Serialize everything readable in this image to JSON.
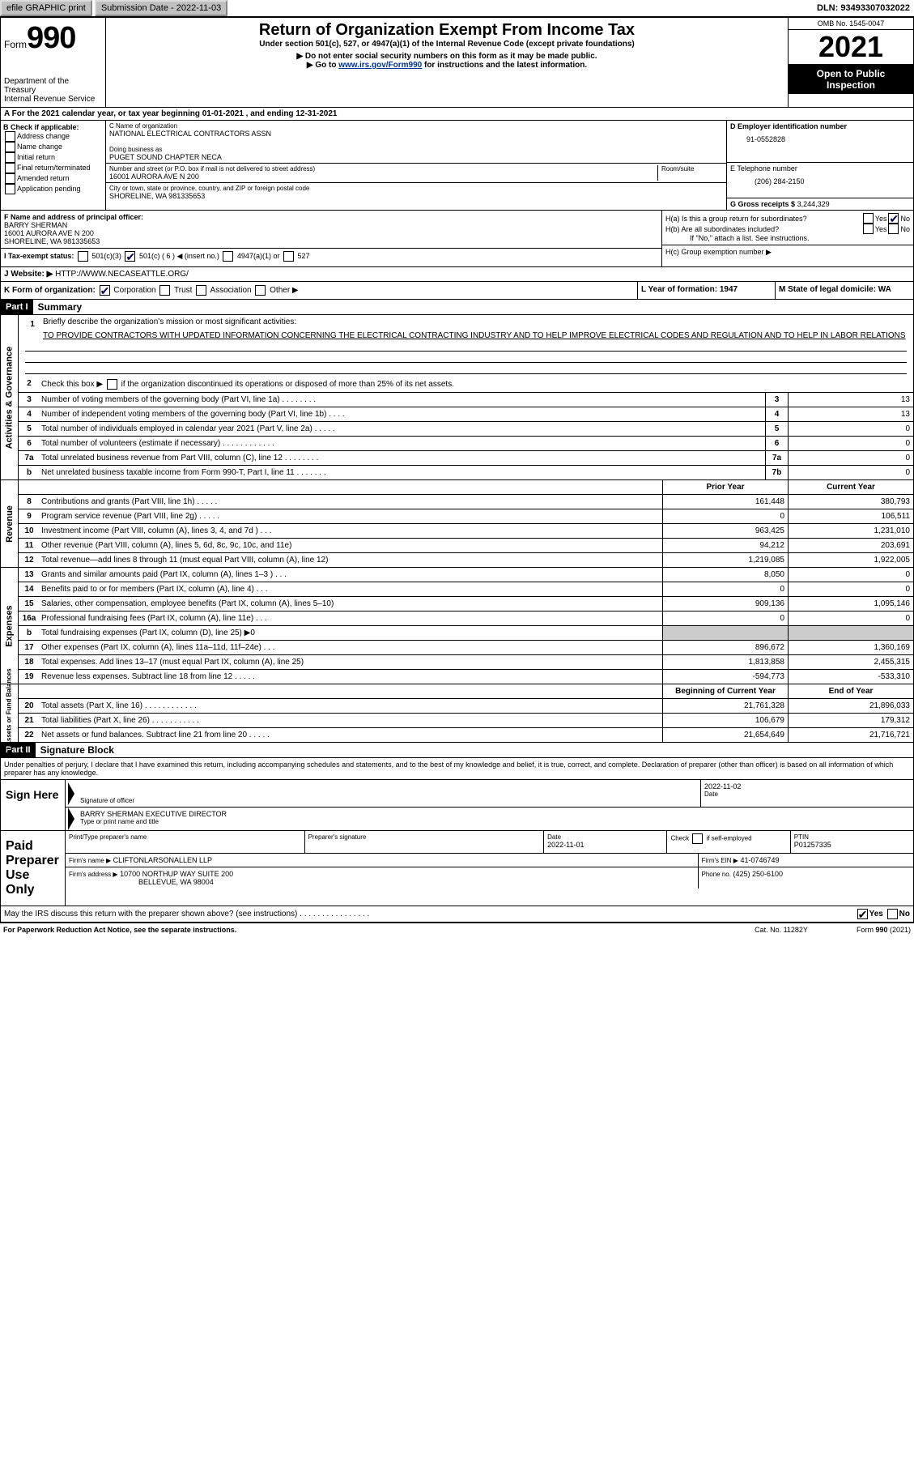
{
  "topbar": {
    "efile": "efile GRAPHIC print",
    "submission_label": "Submission Date - 2022-11-03",
    "dln_label": "DLN: 93493307032022"
  },
  "header": {
    "form_word": "Form",
    "form_num": "990",
    "dept": "Department of the Treasury",
    "dept2": "Internal Revenue Service",
    "title": "Return of Organization Exempt From Income Tax",
    "sub1": "Under section 501(c), 527, or 4947(a)(1) of the Internal Revenue Code (except private foundations)",
    "sub2": "▶ Do not enter social security numbers on this form as it may be made public.",
    "sub3a": "▶ Go to ",
    "sub3link": "www.irs.gov/Form990",
    "sub3b": " for instructions and the latest information.",
    "omb": "OMB No. 1545-0047",
    "year": "2021",
    "open": "Open to Public Inspection"
  },
  "A": {
    "text": "A For the 2021 calendar year, or tax year beginning 01-01-2021    , and ending 12-31-2021"
  },
  "B": {
    "label": "B Check if applicable:",
    "items": [
      "Address change",
      "Name change",
      "Initial return",
      "Final return/terminated",
      "Amended return",
      "Application pending"
    ]
  },
  "C": {
    "name_lbl": "C Name of organization",
    "name": "NATIONAL ELECTRICAL CONTRACTORS ASSN",
    "dba_lbl": "Doing business as",
    "dba": "PUGET SOUND CHAPTER NECA",
    "street_lbl": "Number and street (or P.O. box if mail is not delivered to street address)",
    "street": "16001 AURORA AVE N 200",
    "room_lbl": "Room/suite",
    "city_lbl": "City or town, state or province, country, and ZIP or foreign postal code",
    "city": "SHORELINE, WA  981335653"
  },
  "D": {
    "ein_lbl": "D Employer identification number",
    "ein": "91-0552828",
    "tel_lbl": "E Telephone number",
    "tel": "(206) 284-2150",
    "gross_lbl": "G Gross receipts $",
    "gross": "3,244,329"
  },
  "F": {
    "lbl": "F  Name and address of principal officer:",
    "name": "BARRY SHERMAN",
    "addr1": "16001 AURORA AVE N 200",
    "addr2": "SHORELINE, WA  981335653"
  },
  "H": {
    "a": "H(a)  Is this a group return for subordinates?",
    "b": "H(b)  Are all subordinates included?",
    "note": "If \"No,\" attach a list. See instructions.",
    "c": "H(c)  Group exemption number ▶",
    "yes": "Yes",
    "no": "No"
  },
  "I": {
    "lbl": "I    Tax-exempt status:",
    "o1": "501(c)(3)",
    "o2": "501(c) ( 6 ) ◀ (insert no.)",
    "o3": "4947(a)(1) or",
    "o4": "527"
  },
  "J": {
    "lbl": "J   Website: ▶ ",
    "val": "HTTP://WWW.NECASEATTLE.ORG/"
  },
  "K": {
    "lbl": "K Form of organization:",
    "o1": "Corporation",
    "o2": "Trust",
    "o3": "Association",
    "o4": "Other ▶",
    "L": "L Year of formation: 1947",
    "M": "M State of legal domicile: WA"
  },
  "part1": {
    "bar": "Part I",
    "title": "Summary",
    "l1a": "Briefly describe the organization's mission or most significant activities:",
    "l1b": "TO PROVIDE CONTRACTORS WITH UPDATED INFORMATION CONCERNING THE ELECTRICAL CONTRACTING INDUSTRY AND TO HELP IMPROVE ELECTRICAL CODES AND REGULATION AND TO HELP IN LABOR RELATIONS",
    "l2": "Check this box ▶        if the organization discontinued its operations or disposed of more than 25% of its net assets.",
    "rows3_7": [
      {
        "n": "3",
        "d": "Number of voting members of the governing body (Part VI, line 1a)   .    .    .    .    .    .    .    .",
        "b": "3",
        "v": "13"
      },
      {
        "n": "4",
        "d": "Number of independent voting members of the governing body (Part VI, line 1b)   .    .    .    .",
        "b": "4",
        "v": "13"
      },
      {
        "n": "5",
        "d": "Total number of individuals employed in calendar year 2021 (Part V, line 2a)   .    .    .    .    .",
        "b": "5",
        "v": "0"
      },
      {
        "n": "6",
        "d": "Total number of volunteers (estimate if necessary)    .    .    .    .    .    .    .    .    .    .    .    .",
        "b": "6",
        "v": "0"
      },
      {
        "n": "7a",
        "d": "Total unrelated business revenue from Part VIII, column (C), line 12   .    .    .    .    .    .    .    .",
        "b": "7a",
        "v": "0"
      },
      {
        "n": "b",
        "d": "Net unrelated business taxable income from Form 990-T, Part I, line 11   .    .    .    .    .    .    .",
        "b": "7b",
        "v": "0"
      }
    ],
    "head_prior": "Prior Year",
    "head_curr": "Current Year",
    "rev_rows": [
      {
        "n": "8",
        "d": "Contributions and grants (Part VIII, line 1h)   .    .    .    .    .",
        "p": "161,448",
        "c": "380,793"
      },
      {
        "n": "9",
        "d": "Program service revenue (Part VIII, line 2g)   .    .    .    .    .",
        "p": "0",
        "c": "106,511"
      },
      {
        "n": "10",
        "d": "Investment income (Part VIII, column (A), lines 3, 4, and 7d )    .    .    .",
        "p": "963,425",
        "c": "1,231,010"
      },
      {
        "n": "11",
        "d": "Other revenue (Part VIII, column (A), lines 5, 6d, 8c, 9c, 10c, and 11e)",
        "p": "94,212",
        "c": "203,691"
      },
      {
        "n": "12",
        "d": "Total revenue—add lines 8 through 11 (must equal Part VIII, column (A), line 12)",
        "p": "1,219,085",
        "c": "1,922,005"
      }
    ],
    "exp_rows": [
      {
        "n": "13",
        "d": "Grants and similar amounts paid (Part IX, column (A), lines 1–3 )   .    .    .",
        "p": "8,050",
        "c": "0"
      },
      {
        "n": "14",
        "d": "Benefits paid to or for members (Part IX, column (A), line 4)   .    .    .",
        "p": "0",
        "c": "0"
      },
      {
        "n": "15",
        "d": "Salaries, other compensation, employee benefits (Part IX, column (A), lines 5–10)",
        "p": "909,136",
        "c": "1,095,146"
      },
      {
        "n": "16a",
        "d": "Professional fundraising fees (Part IX, column (A), line 11e)   .    .    .",
        "p": "0",
        "c": "0"
      },
      {
        "n": "b",
        "d": "Total fundraising expenses (Part IX, column (D), line 25) ▶0",
        "p": "grey",
        "c": "grey"
      },
      {
        "n": "17",
        "d": "Other expenses (Part IX, column (A), lines 11a–11d, 11f–24e)    .    .    .",
        "p": "896,672",
        "c": "1,360,169"
      },
      {
        "n": "18",
        "d": "Total expenses. Add lines 13–17 (must equal Part IX, column (A), line 25)",
        "p": "1,813,858",
        "c": "2,455,315"
      },
      {
        "n": "19",
        "d": "Revenue less expenses. Subtract line 18 from line 12   .    .    .    .    .",
        "p": "-594,773",
        "c": "-533,310"
      }
    ],
    "head_beg": "Beginning of Current Year",
    "head_end": "End of Year",
    "na_rows": [
      {
        "n": "20",
        "d": "Total assets (Part X, line 16)   .    .    .    .    .    .    .    .    .    .    .    .",
        "p": "21,761,328",
        "c": "21,896,033"
      },
      {
        "n": "21",
        "d": "Total liabilities (Part X, line 26)   .    .    .    .    .    .    .    .    .    .    .",
        "p": "106,679",
        "c": "179,312"
      },
      {
        "n": "22",
        "d": "Net assets or fund balances. Subtract line 21 from line 20   .    .    .    .    .",
        "p": "21,654,649",
        "c": "21,716,721"
      }
    ]
  },
  "vlabels": {
    "gov": "Activities & Governance",
    "rev": "Revenue",
    "exp": "Expenses",
    "na": "Net Assets or Fund Balances"
  },
  "part2": {
    "bar": "Part II",
    "title": "Signature Block",
    "decl": "Under penalties of perjury, I declare that I have examined this return, including accompanying schedules and statements, and to the best of my knowledge and belief, it is true, correct, and complete. Declaration of preparer (other than officer) is based on all information of which preparer has any knowledge.",
    "sign_here": "Sign Here",
    "sig_of_officer": "Signature of officer",
    "date": "Date",
    "sig_date": "2022-11-02",
    "printed": "BARRY SHERMAN  EXECUTIVE DIRECTOR",
    "printed_lbl": "Type or print name and title",
    "paid": "Paid Preparer Use Only",
    "pp_name_lbl": "Print/Type preparer's name",
    "pp_sig_lbl": "Preparer's signature",
    "pp_date_lbl": "Date",
    "pp_date": "2022-11-01",
    "pp_check_lbl": "Check         if self-employed",
    "pp_ptin_lbl": "PTIN",
    "pp_ptin": "P01257335",
    "firm_name_lbl": "Firm's name      ▶",
    "firm_name": "CLIFTONLARSONALLEN LLP",
    "firm_ein_lbl": "Firm's EIN ▶",
    "firm_ein": "41-0746749",
    "firm_addr_lbl": "Firm's address ▶",
    "firm_addr1": "10700 NORTHUP WAY SUITE 200",
    "firm_addr2": "BELLEVUE, WA  98004",
    "firm_phone_lbl": "Phone no.",
    "firm_phone": "(425) 250-6100",
    "discuss": "May the IRS discuss this return with the preparer shown above? (see instructions)   .    .    .    .    .    .    .    .    .    .    .    .    .    .    .    .",
    "yes": "Yes",
    "no": "No"
  },
  "footer": {
    "pra": "For Paperwork Reduction Act Notice, see the separate instructions.",
    "cat": "Cat. No. 11282Y",
    "form": "Form 990 (2021)"
  }
}
